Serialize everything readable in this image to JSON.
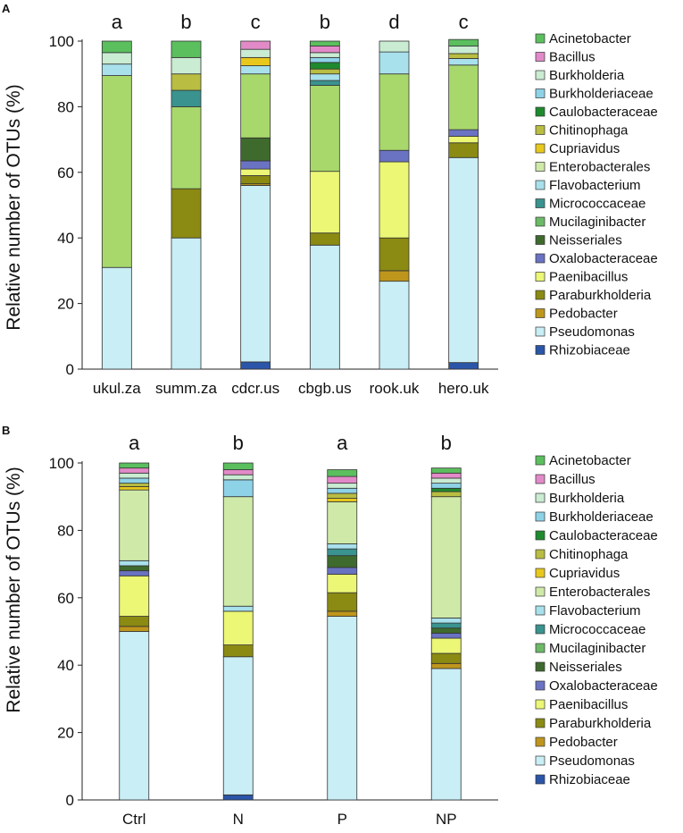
{
  "legend": [
    {
      "name": "Acinetobacter",
      "color": "#5bbf5e"
    },
    {
      "name": "Bacillus",
      "color": "#e28ac8"
    },
    {
      "name": "Burkholderia",
      "color": "#c9ecd2"
    },
    {
      "name": "Burkholderiaceae",
      "color": "#8ed2e8"
    },
    {
      "name": "Caulobacteraceae",
      "color": "#1e8a2e"
    },
    {
      "name": "Chitinophaga",
      "color": "#b9bd41"
    },
    {
      "name": "Cupriavidus",
      "color": "#e8c81c"
    },
    {
      "name": "Enterobacterales",
      "color": "#cfeaa8"
    },
    {
      "name": "Flavobacterium",
      "color": "#a8e0ec"
    },
    {
      "name": "Micrococcaceae",
      "color": "#3a938f"
    },
    {
      "name": "Mucilaginibacter",
      "color": "#6cba66"
    },
    {
      "name": "Neisseriales",
      "color": "#3f6a2d"
    },
    {
      "name": "Oxalobacteraceae",
      "color": "#6a72c2"
    },
    {
      "name": "Paenibacillus",
      "color": "#ebf775"
    },
    {
      "name": "Paraburkholderia",
      "color": "#8b8a13"
    },
    {
      "name": "Pedobacter",
      "color": "#bf961c"
    },
    {
      "name": "Pseudomonas",
      "color": "#c9eef5"
    },
    {
      "name": "Rhizobiaceae",
      "color": "#2b55a8"
    }
  ],
  "extra_colors": {
    "Mucilaginibacter_main": "#a8d86c"
  },
  "chart_data": [
    {
      "panel": "A",
      "type": "bar",
      "stacked": true,
      "ylabel": "Relative number of OTUs (%)",
      "ylim": [
        0,
        100
      ],
      "yticks": [
        "0",
        "20",
        "40",
        "60",
        "80",
        "100"
      ],
      "categories": [
        "ukul.za",
        "summ.za",
        "cdcr.us",
        "cbgb.us",
        "rook.uk",
        "hero.uk"
      ],
      "significance": [
        "a",
        "b",
        "c",
        "b",
        "d",
        "c"
      ],
      "series": [
        {
          "name": "Rhizobiaceae",
          "values": [
            0,
            0,
            2.2,
            0,
            0,
            2
          ]
        },
        {
          "name": "Pseudomonas",
          "values": [
            31,
            40,
            53.8,
            37.8,
            26.8,
            62.5
          ]
        },
        {
          "name": "Pedobacter",
          "values": [
            0,
            0,
            0.5,
            0,
            3.2,
            0
          ]
        },
        {
          "name": "Paraburkholderia",
          "values": [
            0,
            15,
            2.5,
            3.7,
            10,
            4.5
          ]
        },
        {
          "name": "Paenibacillus",
          "values": [
            0,
            0,
            2,
            18.8,
            23.2,
            2
          ]
        },
        {
          "name": "Oxalobacteraceae",
          "values": [
            0,
            0,
            2.5,
            0,
            3.5,
            2
          ]
        },
        {
          "name": "Neisseriales",
          "values": [
            0,
            0,
            7,
            0,
            0,
            0
          ]
        },
        {
          "name": "Mucilaginibacter",
          "values": [
            58.5,
            25,
            19.5,
            26.2,
            23.3,
            19.7
          ]
        },
        {
          "name": "Micrococcaceae",
          "values": [
            0,
            5,
            0,
            1.5,
            0,
            0
          ]
        },
        {
          "name": "Flavobacterium",
          "values": [
            3.5,
            0,
            2.5,
            2,
            6.7,
            2
          ]
        },
        {
          "name": "Enterobacterales",
          "values": [
            0,
            0,
            0,
            0,
            0,
            0
          ]
        },
        {
          "name": "Cupriavidus",
          "values": [
            0,
            0,
            2.5,
            0,
            0,
            0
          ]
        },
        {
          "name": "Chitinophaga",
          "values": [
            0,
            5,
            0,
            1.5,
            0,
            1.5
          ]
        },
        {
          "name": "Caulobacteraceae",
          "values": [
            0,
            0,
            0,
            2,
            0,
            0
          ]
        },
        {
          "name": "Burkholderiaceae",
          "values": [
            0,
            0,
            0,
            1.5,
            0,
            0
          ]
        },
        {
          "name": "Burkholderia",
          "values": [
            3.5,
            5,
            2.5,
            1.5,
            3.3,
            2.3
          ]
        },
        {
          "name": "Bacillus",
          "values": [
            0,
            0,
            2.5,
            2,
            0,
            0
          ]
        },
        {
          "name": "Acinetobacter",
          "values": [
            3.5,
            5,
            0,
            1.5,
            0,
            2
          ]
        }
      ]
    },
    {
      "panel": "B",
      "type": "bar",
      "stacked": true,
      "ylabel": "Relative number of OTUs (%)",
      "ylim": [
        0,
        100
      ],
      "yticks": [
        "0",
        "20",
        "40",
        "60",
        "80",
        "100"
      ],
      "categories": [
        "Ctrl",
        "N",
        "P",
        "NP"
      ],
      "significance": [
        "a",
        "b",
        "a",
        "b"
      ],
      "series": [
        {
          "name": "Rhizobiaceae",
          "values": [
            0,
            1.5,
            0,
            0
          ]
        },
        {
          "name": "Pseudomonas",
          "values": [
            50,
            41,
            54.5,
            39
          ]
        },
        {
          "name": "Pedobacter",
          "values": [
            1.5,
            0,
            1.5,
            1.5
          ]
        },
        {
          "name": "Paraburkholderia",
          "values": [
            3,
            3.5,
            5.5,
            3
          ]
        },
        {
          "name": "Paenibacillus",
          "values": [
            12,
            10,
            5.5,
            4.5
          ]
        },
        {
          "name": "Oxalobacteraceae",
          "values": [
            1.5,
            0,
            2,
            1.5
          ]
        },
        {
          "name": "Neisseriales",
          "values": [
            1.5,
            0,
            3.5,
            1.5
          ]
        },
        {
          "name": "Mucilaginibacter",
          "values": [
            0,
            0,
            0,
            0
          ]
        },
        {
          "name": "Micrococcaceae",
          "values": [
            0,
            0,
            2,
            1.5
          ]
        },
        {
          "name": "Flavobacterium",
          "values": [
            1.5,
            1.5,
            1.5,
            1.5
          ]
        },
        {
          "name": "Enterobacterales",
          "values": [
            21,
            32.5,
            12.5,
            36
          ]
        },
        {
          "name": "Cupriavidus",
          "values": [
            1,
            0,
            1,
            0
          ]
        },
        {
          "name": "Chitinophaga",
          "values": [
            1,
            0,
            1.5,
            1.5
          ]
        },
        {
          "name": "Caulobacteraceae",
          "values": [
            0,
            0,
            0,
            1
          ]
        },
        {
          "name": "Burkholderiaceae",
          "values": [
            1.5,
            5,
            1.5,
            1.5
          ]
        },
        {
          "name": "Burkholderia",
          "values": [
            1.5,
            1.5,
            1.5,
            1.5
          ]
        },
        {
          "name": "Bacillus",
          "values": [
            1.5,
            1.5,
            2,
            1.5
          ]
        },
        {
          "name": "Acinetobacter",
          "values": [
            1.5,
            2,
            2,
            1.5
          ]
        }
      ]
    }
  ]
}
